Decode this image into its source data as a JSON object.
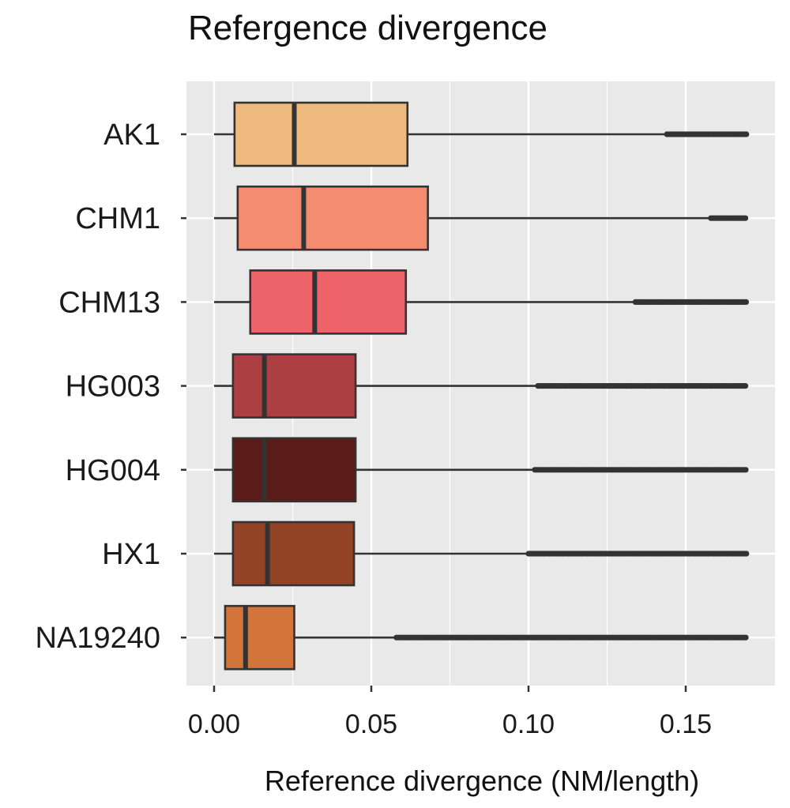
{
  "chart_data": {
    "type": "boxplot",
    "orientation": "horizontal",
    "title": "Refergence divergence",
    "xlabel": "Reference divergence (NM/length)",
    "ylabel": "",
    "xlim": [
      -0.009,
      0.178
    ],
    "x_ticks": [
      0.0,
      0.05,
      0.1,
      0.15
    ],
    "x_tick_labels": [
      "0.00",
      "0.05",
      "0.10",
      "0.15"
    ],
    "grid": true,
    "background": "#e9e9e9",
    "series": [
      {
        "name": "AK1",
        "color": "#efba7d",
        "whisker_low": 0.0,
        "q1": 0.0065,
        "median": 0.0255,
        "q3": 0.0615,
        "whisker_high": 0.144,
        "outliers_from": 0.144,
        "outliers_to": 0.1695
      },
      {
        "name": "CHM1",
        "color": "#f48d70",
        "whisker_low": 0.0,
        "q1": 0.0075,
        "median": 0.0285,
        "q3": 0.068,
        "whisker_high": 0.158,
        "outliers_from": 0.158,
        "outliers_to": 0.1695
      },
      {
        "name": "CHM13",
        "color": "#ee636a",
        "whisker_low": 0.0,
        "q1": 0.0115,
        "median": 0.032,
        "q3": 0.061,
        "whisker_high": 0.134,
        "outliers_from": 0.134,
        "outliers_to": 0.1695
      },
      {
        "name": "HG003",
        "color": "#ac3f42",
        "whisker_low": 0.0,
        "q1": 0.006,
        "median": 0.016,
        "q3": 0.045,
        "whisker_high": 0.103,
        "outliers_from": 0.103,
        "outliers_to": 0.1695
      },
      {
        "name": "HG004",
        "color": "#5b1c19",
        "whisker_low": 0.0,
        "q1": 0.006,
        "median": 0.016,
        "q3": 0.045,
        "whisker_high": 0.102,
        "outliers_from": 0.102,
        "outliers_to": 0.1695
      },
      {
        "name": "HX1",
        "color": "#934426",
        "whisker_low": 0.0,
        "q1": 0.006,
        "median": 0.017,
        "q3": 0.0445,
        "whisker_high": 0.1,
        "outliers_from": 0.1,
        "outliers_to": 0.1695
      },
      {
        "name": "NA19240",
        "color": "#d3753a",
        "whisker_low": 0.0,
        "q1": 0.0035,
        "median": 0.01,
        "q3": 0.0255,
        "whisker_high": 0.058,
        "outliers_from": 0.058,
        "outliers_to": 0.1695
      }
    ]
  }
}
